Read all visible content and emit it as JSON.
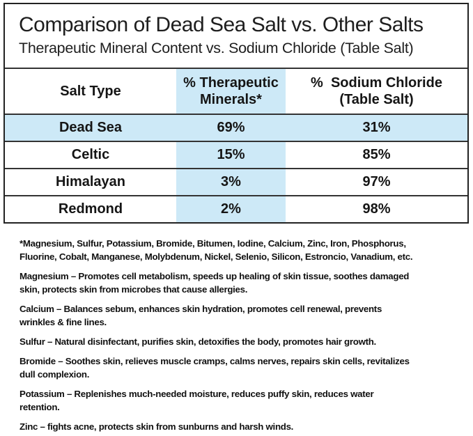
{
  "header": {
    "title": "Comparison of Dead Sea Salt vs. Other Salts",
    "subtitle": "Therapeutic Mineral Content vs. Sodium Chloride (Table Salt)"
  },
  "table": {
    "columns": {
      "salt_type": "Salt Type",
      "therapeutic": "% Therapeutic\nMinerals*",
      "sodium": "%  Sodium Chloride\n(Table Salt)"
    },
    "rows": [
      {
        "name": "Dead Sea",
        "therapeutic": "69%",
        "sodium": "31%",
        "highlighted": true
      },
      {
        "name": "Celtic",
        "therapeutic": "15%",
        "sodium": "85%",
        "highlighted": false
      },
      {
        "name": "Himalayan",
        "therapeutic": "3%",
        "sodium": "97%",
        "highlighted": false
      },
      {
        "name": "Redmond",
        "therapeutic": "2%",
        "sodium": "98%",
        "highlighted": false
      }
    ],
    "highlight_color": "#cde9f7"
  },
  "footnotes": {
    "minerals_note": "*Magnesium, Sulfur, Potassium, Bromide, Bitumen, Iodine, Calcium, Zinc, Iron, Phosphorus,\nFluorine, Cobalt, Manganese, Molybdenum, Nickel, Selenio, Silicon, Estroncio, Vanadium, etc.",
    "magnesium": "Magnesium – Promotes cell metabolism, speeds up healing of skin tissue, soothes damaged\nskin, protects skin from microbes that cause allergies.",
    "calcium": "Calcium – Balances sebum, enhances skin hydration, promotes cell renewal, prevents\nwrinkles & fine lines.",
    "sulfur": "Sulfur – Natural disinfectant, purifies skin, detoxifies the body, promotes hair growth.",
    "bromide": "Bromide – Soothes skin, relieves muscle cramps, calms nerves, repairs skin cells, revitalizes\ndull complexion.",
    "potassium": "Potassium – Replenishes much-needed moisture, reduces puffy skin, reduces water\nretention.",
    "zinc": "Zinc – fights acne, protects skin from sunburns and harsh winds."
  }
}
